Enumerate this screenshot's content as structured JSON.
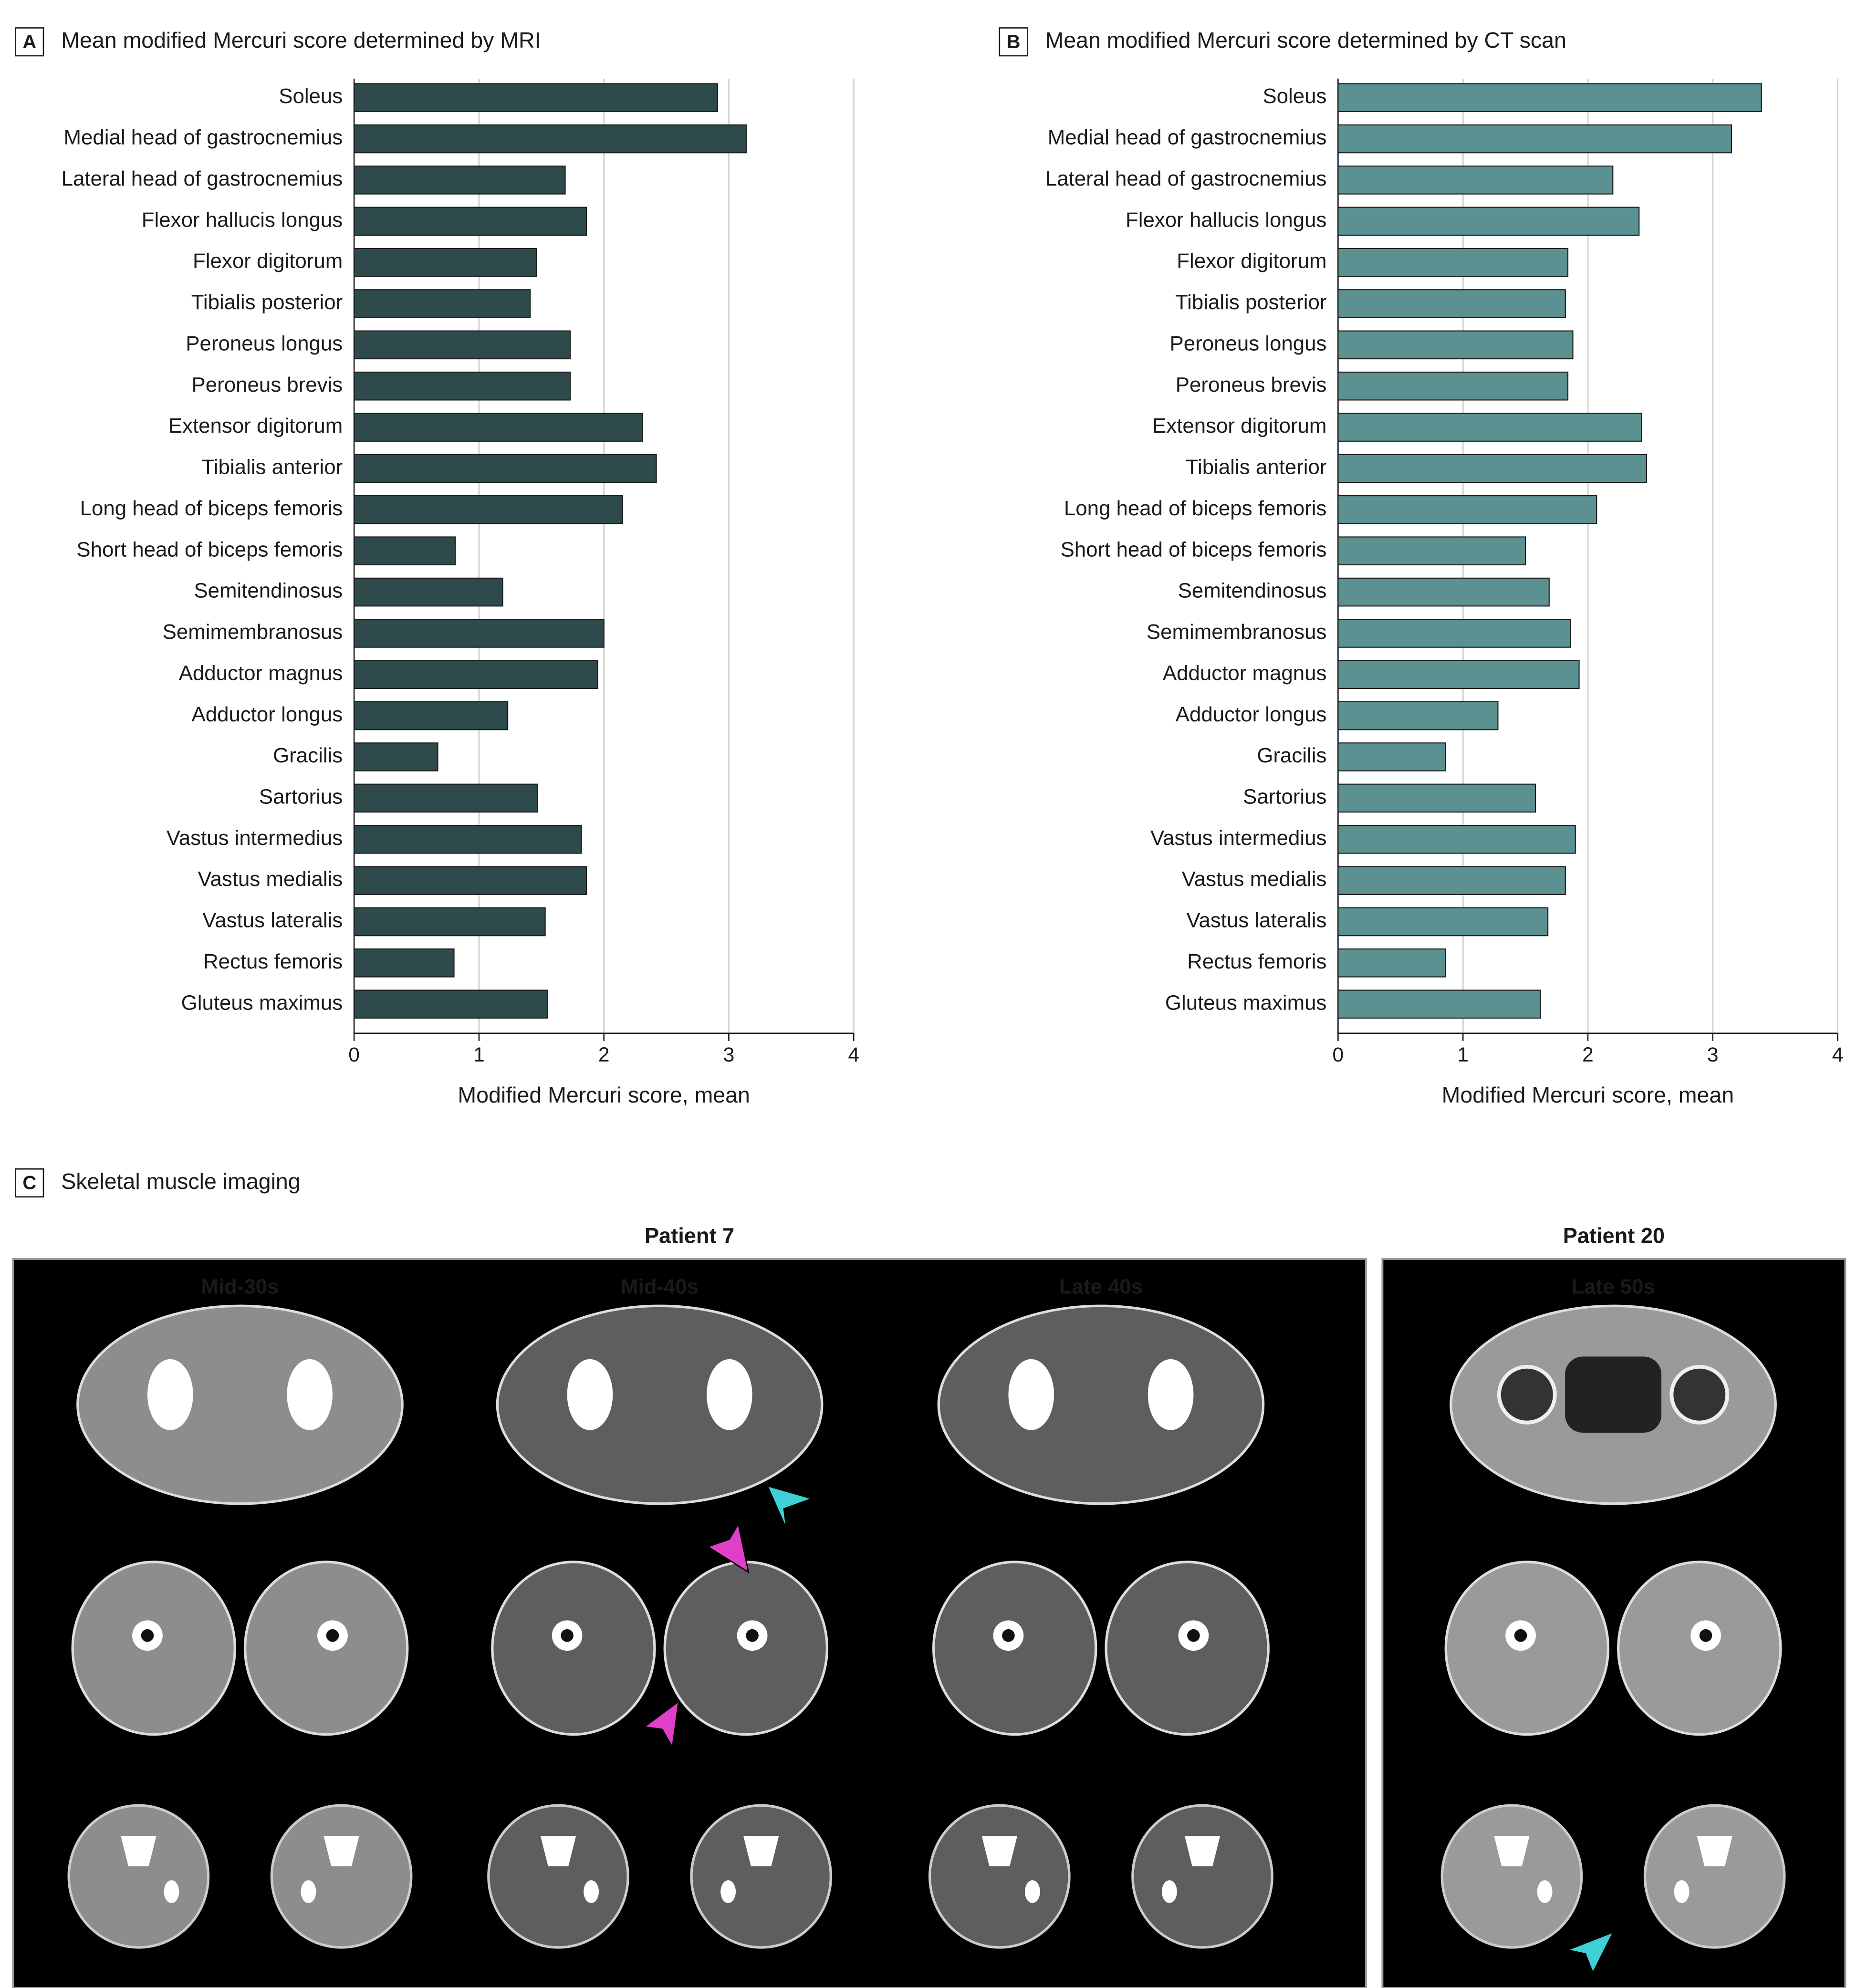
{
  "chart_data": [
    {
      "type": "bar",
      "orientation": "horizontal",
      "panel_label": "A",
      "title": "Mean modified Mercuri score determined by MRI",
      "categories": [
        "Soleus",
        "Medial head of gastrocnemius",
        "Lateral head of gastrocnemius",
        "Flexor hallucis longus",
        "Flexor digitorum",
        "Tibialis posterior",
        "Peroneus longus",
        "Peroneus brevis",
        "Extensor digitorum",
        "Tibialis anterior",
        "Long head of biceps femoris",
        "Short head of biceps femoris",
        "Semitendinosus",
        "Semimembranosus",
        "Adductor magnus",
        "Adductor longus",
        "Gracilis",
        "Sartorius",
        "Vastus intermedius",
        "Vastus medialis",
        "Vastus lateralis",
        "Rectus femoris",
        "Gluteus maximus"
      ],
      "values": [
        2.91,
        3.14,
        1.69,
        1.86,
        1.46,
        1.41,
        1.73,
        1.73,
        2.31,
        2.42,
        2.15,
        0.81,
        1.19,
        2.0,
        1.95,
        1.23,
        0.67,
        1.47,
        1.82,
        1.86,
        1.53,
        0.8,
        1.55
      ],
      "color": "#2e4a4a",
      "xlabel": "Modified Mercuri score, mean",
      "xlim": [
        0,
        4
      ],
      "xticks": [
        0,
        1,
        2,
        3,
        4
      ],
      "grid": true
    },
    {
      "type": "bar",
      "orientation": "horizontal",
      "panel_label": "B",
      "title": "Mean modified Mercuri score determined by CT scan",
      "categories": [
        "Soleus",
        "Medial head of gastrocnemius",
        "Lateral head of gastrocnemius",
        "Flexor hallucis longus",
        "Flexor digitorum",
        "Tibialis posterior",
        "Peroneus longus",
        "Peroneus brevis",
        "Extensor digitorum",
        "Tibialis anterior",
        "Long head of biceps femoris",
        "Short head of biceps femoris",
        "Semitendinosus",
        "Semimembranosus",
        "Adductor magnus",
        "Adductor longus",
        "Gracilis",
        "Sartorius",
        "Vastus intermedius",
        "Vastus medialis",
        "Vastus lateralis",
        "Rectus femoris",
        "Gluteus maximus"
      ],
      "values": [
        3.39,
        3.15,
        2.2,
        2.41,
        1.84,
        1.82,
        1.88,
        1.84,
        2.43,
        2.47,
        2.07,
        1.5,
        1.69,
        1.86,
        1.93,
        1.28,
        0.86,
        1.58,
        1.9,
        1.82,
        1.68,
        0.86,
        1.62
      ],
      "color": "#5b9190",
      "xlabel": "Modified Mercuri score, mean",
      "xlim": [
        0,
        4
      ],
      "xticks": [
        0,
        1,
        2,
        3,
        4
      ],
      "grid": true
    }
  ],
  "panel_c": {
    "label": "C",
    "title": "Skeletal muscle imaging",
    "patients": [
      {
        "name": "Patient 7",
        "timepoints": [
          "Mid-30s",
          "Mid-40s",
          "Late 40s"
        ]
      },
      {
        "name": "Patient 20",
        "timepoints": [
          "Late 50s"
        ]
      }
    ]
  }
}
